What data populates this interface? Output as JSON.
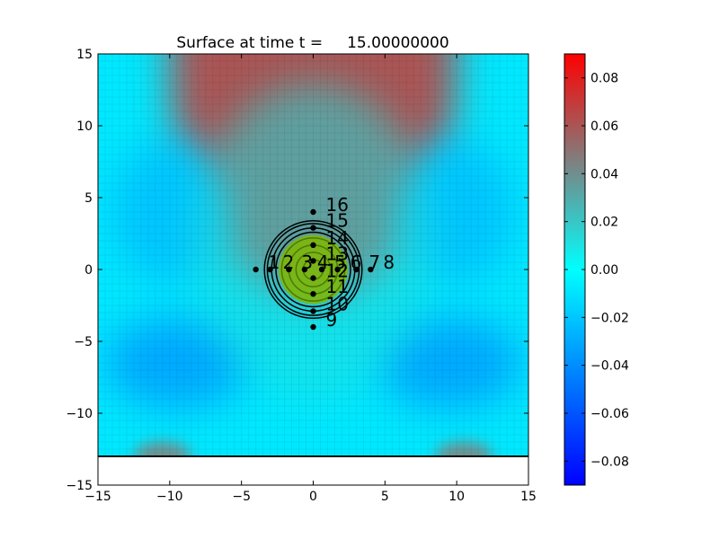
{
  "chart_data": {
    "type": "heatmap",
    "title": "Surface at time t =     15.00000000",
    "xlabel": "",
    "ylabel": "",
    "xlim": [
      -15,
      15
    ],
    "ylim": [
      -15,
      15
    ],
    "xticks": [
      -15,
      -10,
      -5,
      0,
      5,
      10,
      15
    ],
    "yticks": [
      -15,
      -10,
      -5,
      0,
      5,
      10,
      15
    ],
    "xtick_labels": [
      "−15",
      "−10",
      "−5",
      "0",
      "5",
      "10",
      "15"
    ],
    "ytick_labels": [
      "−15",
      "−10",
      "−5",
      "0",
      "5",
      "10",
      "15"
    ],
    "grid": true,
    "surface_domain_ymin": -13,
    "colormap": {
      "min": -0.09,
      "max": 0.09,
      "colors": [
        "#0000ff",
        "#00ffff",
        "#ff0000"
      ],
      "ticks": [
        -0.08,
        -0.06,
        -0.04,
        -0.02,
        0.0,
        0.02,
        0.04,
        0.06,
        0.08
      ],
      "tick_labels": [
        "−0.08",
        "−0.06",
        "−0.04",
        "−0.02",
        "0.00",
        "0.02",
        "0.04",
        "0.06",
        "0.08"
      ]
    },
    "surface_features": [
      {
        "label": "positive-cap",
        "x": 0,
        "y": 15,
        "rx": 10,
        "ry": 17,
        "value": 0.06
      },
      {
        "label": "right-lobe",
        "x": 9.5,
        "y": -6.5,
        "rx": 5,
        "ry": 3.2,
        "value": -0.03
      },
      {
        "label": "left-lobe",
        "x": -9.5,
        "y": -6.5,
        "rx": 5,
        "ry": 3.2,
        "value": -0.03
      },
      {
        "label": "upper-left-lobe",
        "x": -10,
        "y": 4,
        "rx": 4,
        "ry": 5,
        "value": -0.02
      },
      {
        "label": "upper-right-lobe",
        "x": 10,
        "y": 4,
        "rx": 4,
        "ry": 5,
        "value": -0.02
      },
      {
        "label": "bottom-left-bump",
        "x": -10.5,
        "y": -13,
        "rx": 2,
        "ry": 1,
        "value": 0.04
      },
      {
        "label": "bottom-right-bump",
        "x": 10.5,
        "y": -13,
        "rx": 2,
        "ry": 1,
        "value": 0.04
      }
    ],
    "contours": {
      "center": [
        0,
        0
      ],
      "radii": [
        0.7,
        1.2,
        1.7,
        2.2,
        2.6,
        2.9,
        3.2,
        3.4
      ],
      "fill_radius": 2.4,
      "fill_color": "#7fb800"
    },
    "gauges": [
      {
        "label": "1",
        "x": -4,
        "y": 0
      },
      {
        "label": "2",
        "x": -3,
        "y": 0
      },
      {
        "label": "3",
        "x": -1.7,
        "y": 0
      },
      {
        "label": "4",
        "x": -0.6,
        "y": 0
      },
      {
        "label": "5",
        "x": 0.6,
        "y": 0
      },
      {
        "label": "6",
        "x": 1.7,
        "y": 0
      },
      {
        "label": "7",
        "x": 3,
        "y": 0
      },
      {
        "label": "8",
        "x": 4,
        "y": 0
      },
      {
        "label": "9",
        "x": 0,
        "y": -4
      },
      {
        "label": "10",
        "x": 0,
        "y": -2.9
      },
      {
        "label": "11",
        "x": 0,
        "y": -1.7
      },
      {
        "label": "12",
        "x": 0,
        "y": -0.6
      },
      {
        "label": "13",
        "x": 0,
        "y": 0.6
      },
      {
        "label": "14",
        "x": 0,
        "y": 1.7
      },
      {
        "label": "15",
        "x": 0,
        "y": 2.9
      },
      {
        "label": "16",
        "x": 0,
        "y": 4
      }
    ]
  }
}
